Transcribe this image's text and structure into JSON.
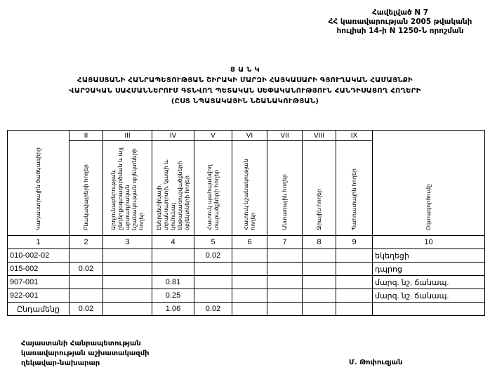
{
  "header": {
    "lines": [
      "Հավելված N 7",
      "ՀՀ կառավարության 2005 թվականի",
      "հուլիսի 14-ի N 1250-Ն որոշման"
    ]
  },
  "title": {
    "lines": [
      "Ց Ա Ն Կ",
      "ՀԱՅԱՍՏԱՆԻ ՀԱՆՐԱՊԵՏՈՒԹՅԱՆ ՇԻՐԱԿԻ ՄԱՐԶԻ ՀԱՅԿԱՍԱՐԻ ԳՅՈՒՂԱԿԱՆ ՀԱՄԱՅՆՔԻ",
      "ՎԱՐՉԱԿԱՆ ՍԱՀՄԱՆՆԵՐՈՒՄ ԳՏՆՎՈՂ ՊԵՏԱԿԱՆ ՍԵՓԱԿԱՆՈՒԹՅՈՒՆ ՀԱՆԴԻՍԱՑՈՂ ՀՈՂԵՐԻ",
      "(ԸՍՏ ՆՊԱՏԱԿԱՅԻՆ ՆՇԱՆԱԿՈՒԹՅԱՆ)"
    ]
  },
  "table": {
    "roman": [
      "II",
      "III",
      "IV",
      "V",
      "VI",
      "VII",
      "VIII",
      "IX"
    ],
    "headers": [
      "Կադաստրային ծածկագիրը",
      "Բնակավայրերի հողեր",
      "Արդյունաբերության, ընդերքօգտագործման և այլ արտադրական նշանակության օբյեկտների հողեր",
      "Էներգետիկայի, տրանսպորտի, կապի և կոմունալ ենթակառուցվածքների օբյեկտների հողեր",
      "Հատուկ պահպանվող տարածքների հողեր",
      "Հատուկ նշանակության հողեր",
      "Անտառային հողեր",
      "Ջրային հողեր",
      "Պահուստային հողեր",
      "Օգտագործումը"
    ],
    "numbers": [
      "1",
      "2",
      "3",
      "4",
      "5",
      "6",
      "7",
      "8",
      "9",
      "10"
    ],
    "rows": [
      [
        "010-002-02",
        "",
        "",
        "",
        "0.02",
        "",
        "",
        "",
        "",
        "եկեղեցի"
      ],
      [
        "015-002",
        "0.02",
        "",
        "",
        "",
        "",
        "",
        "",
        "",
        "դպրոց"
      ],
      [
        "907-001",
        "",
        "",
        "0.81",
        "",
        "",
        "",
        "",
        "",
        "մարզ. նշ. ճանապ."
      ],
      [
        "922-001",
        "",
        "",
        "0.25",
        "",
        "",
        "",
        "",
        "",
        "մարզ. նշ. ճանապ."
      ],
      [
        "Ընդամենը",
        "0.02",
        "",
        "1.06",
        "0.02",
        "",
        "",
        "",
        "",
        ""
      ]
    ]
  },
  "footer": {
    "lines": [
      "Հայաստանի Հանրապետության",
      "կառավարության աշխատակազմի",
      "ղեկավար-նախարար"
    ],
    "signature": "Մ. Թոփուզյան"
  }
}
